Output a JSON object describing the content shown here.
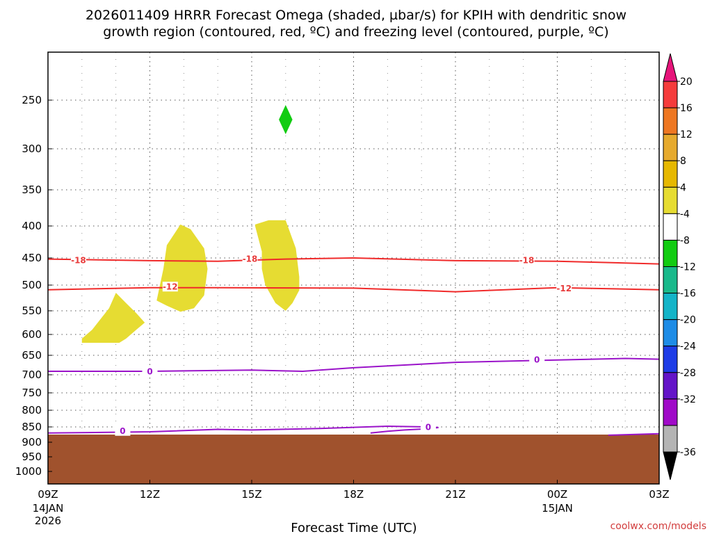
{
  "chart_data": {
    "type": "time-pressure cross-section",
    "title_lines": [
      "2026011409 HRRR Forecast Omega (shaded, µbar/s) for KPIH with dendritic snow",
      "growth region (contoured, red, ºC) and freezing level (contoured, purple, ºC)"
    ],
    "xlabel": "Forecast Time (UTC)",
    "credit": "coolwx.com/models",
    "x_range_hours": [
      0,
      18
    ],
    "x_ticks": [
      {
        "h": 0,
        "label": "09Z",
        "sub1": "14JAN",
        "sub2": "2026"
      },
      {
        "h": 3,
        "label": "12Z",
        "sub1": "",
        "sub2": ""
      },
      {
        "h": 6,
        "label": "15Z",
        "sub1": "",
        "sub2": ""
      },
      {
        "h": 9,
        "label": "18Z",
        "sub1": "",
        "sub2": ""
      },
      {
        "h": 12,
        "label": "21Z",
        "sub1": "",
        "sub2": ""
      },
      {
        "h": 15,
        "label": "00Z",
        "sub1": "15JAN",
        "sub2": ""
      },
      {
        "h": 18,
        "label": "03Z",
        "sub1": "",
        "sub2": ""
      }
    ],
    "y_range_hpa": [
      200,
      1050
    ],
    "y_ticks": [
      250,
      300,
      350,
      400,
      450,
      500,
      550,
      600,
      650,
      700,
      750,
      800,
      850,
      900,
      950,
      1000
    ],
    "terrain_top_hpa": 875,
    "colorbar": {
      "labels": [
        "20",
        "16",
        "12",
        "8",
        "4",
        "-4",
        "-8",
        "-12",
        "-16",
        "-20",
        "-24",
        "-28",
        "-32",
        "-36"
      ],
      "colors": [
        "#f53c3c",
        "#ee7722",
        "#e6aa2e",
        "#e6b800",
        "#e6dc32",
        "#ffffff",
        "#12cc12",
        "#1ab98b",
        "#14b4c8",
        "#1e8ce6",
        "#1e3ce6",
        "#6414c8",
        "#a00ac8",
        "#b4b4b4"
      ],
      "top_arrow_color": "#e6147a",
      "bottom_arrow_color": "#000000"
    },
    "omega_areas": [
      {
        "color": "#e6dc32",
        "points": [
          [
            1.0,
            610
          ],
          [
            1.3,
            590
          ],
          [
            1.8,
            545
          ],
          [
            2.0,
            515
          ],
          [
            2.3,
            535
          ],
          [
            2.6,
            555
          ],
          [
            2.85,
            575
          ],
          [
            2.6,
            590
          ],
          [
            2.3,
            610
          ],
          [
            2.1,
            620
          ],
          [
            1.0,
            620
          ]
        ]
      },
      {
        "color": "#e6dc32",
        "points": [
          [
            3.2,
            530
          ],
          [
            3.4,
            470
          ],
          [
            3.5,
            430
          ],
          [
            3.9,
            398
          ],
          [
            4.2,
            405
          ],
          [
            4.6,
            435
          ],
          [
            4.7,
            470
          ],
          [
            4.6,
            520
          ],
          [
            4.3,
            545
          ],
          [
            3.9,
            552
          ],
          [
            3.5,
            540
          ]
        ]
      },
      {
        "color": "#e6dc32",
        "points": [
          [
            6.1,
            398
          ],
          [
            6.5,
            392
          ],
          [
            7.0,
            392
          ],
          [
            7.3,
            435
          ],
          [
            7.4,
            485
          ],
          [
            7.4,
            510
          ],
          [
            7.2,
            535
          ],
          [
            7.0,
            550
          ],
          [
            6.7,
            535
          ],
          [
            6.4,
            500
          ],
          [
            6.3,
            470
          ],
          [
            6.3,
            440
          ],
          [
            6.1,
            400
          ]
        ]
      },
      {
        "color": "#12cc12",
        "points": [
          [
            7.0,
            255
          ],
          [
            7.2,
            270
          ],
          [
            7.0,
            285
          ],
          [
            6.8,
            270
          ]
        ]
      }
    ],
    "contours": [
      {
        "label": "-18",
        "color": "#f02a2a",
        "points": [
          [
            0,
            452
          ],
          [
            3,
            455
          ],
          [
            5,
            456
          ],
          [
            7,
            452
          ],
          [
            9,
            450
          ],
          [
            12,
            455
          ],
          [
            15,
            456
          ],
          [
            18,
            461
          ]
        ],
        "label_at": [
          [
            0.9,
            454
          ],
          [
            5.95,
            451
          ],
          [
            14.1,
            454
          ]
        ]
      },
      {
        "label": "-12",
        "color": "#f02a2a",
        "points": [
          [
            0,
            509
          ],
          [
            3,
            505
          ],
          [
            5,
            505
          ],
          [
            9,
            506
          ],
          [
            12,
            513
          ],
          [
            15,
            505
          ],
          [
            18,
            509
          ]
        ],
        "label_at": [
          [
            3.6,
            503
          ],
          [
            15.2,
            506
          ]
        ]
      },
      {
        "label": "0",
        "color": "#9a13c9",
        "points": [
          [
            0,
            691
          ],
          [
            3,
            691
          ],
          [
            6,
            688
          ],
          [
            7.5,
            691
          ],
          [
            9,
            682
          ],
          [
            12,
            668
          ],
          [
            15,
            662
          ],
          [
            17,
            658
          ],
          [
            18,
            660
          ]
        ],
        "label_at": [
          [
            3,
            691
          ],
          [
            14.4,
            661
          ]
        ]
      },
      {
        "label": "0",
        "color": "#9a13c9",
        "points": [
          [
            0,
            870
          ],
          [
            3,
            866
          ],
          [
            5,
            858
          ],
          [
            6,
            860
          ],
          [
            8,
            855
          ],
          [
            10,
            848
          ],
          [
            11.2,
            850
          ],
          [
            11.5,
            852
          ],
          [
            11.2,
            856
          ],
          [
            10.5,
            860
          ],
          [
            10,
            864
          ],
          [
            9.5,
            870
          ]
        ],
        "label_at": [
          [
            2.2,
            863
          ],
          [
            11.2,
            850
          ]
        ]
      },
      {
        "label": "",
        "color": "#9a13c9",
        "points": [
          [
            16.5,
            877
          ],
          [
            18,
            872
          ]
        ],
        "label_at": []
      }
    ]
  }
}
